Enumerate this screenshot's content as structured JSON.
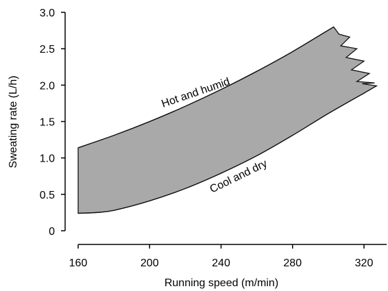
{
  "chart_data": {
    "type": "area",
    "title": "",
    "xlabel": "Running speed (m/min)",
    "ylabel": "Sweating rate (L/h)",
    "xlim": [
      160,
      328
    ],
    "ylim": [
      0,
      3.0
    ],
    "x_ticks": [
      160,
      200,
      240,
      280,
      320
    ],
    "x_tick_labels": [
      "160",
      "200",
      "240",
      "280",
      "320"
    ],
    "y_ticks": [
      0,
      0.5,
      1.0,
      1.5,
      2.0,
      2.5,
      3.0
    ],
    "y_tick_labels": [
      "0",
      "0.5",
      "1.0",
      "1.5",
      "2.0",
      "2.5",
      "3.0"
    ],
    "grid": false,
    "fill_color": "#a9a9a9",
    "series": [
      {
        "name": "Hot and humid",
        "x": [
          160,
          180,
          200,
          220,
          240,
          260,
          280,
          303
        ],
        "y": [
          1.14,
          1.31,
          1.5,
          1.71,
          1.94,
          2.19,
          2.46,
          2.8
        ]
      },
      {
        "name": "Cool and dry",
        "x": [
          160,
          170,
          180,
          200,
          220,
          240,
          260,
          280,
          300,
          320,
          327
        ],
        "y": [
          0.24,
          0.25,
          0.28,
          0.41,
          0.58,
          0.79,
          1.03,
          1.31,
          1.61,
          1.89,
          1.99
        ]
      }
    ],
    "right_edge_zigzag": {
      "x": [
        303,
        306,
        312,
        307,
        316,
        310,
        320,
        313,
        323,
        316,
        326,
        319,
        327
      ],
      "y": [
        2.8,
        2.7,
        2.66,
        2.54,
        2.5,
        2.38,
        2.33,
        2.21,
        2.16,
        2.05,
        2.03,
        2.02,
        1.99
      ]
    }
  }
}
